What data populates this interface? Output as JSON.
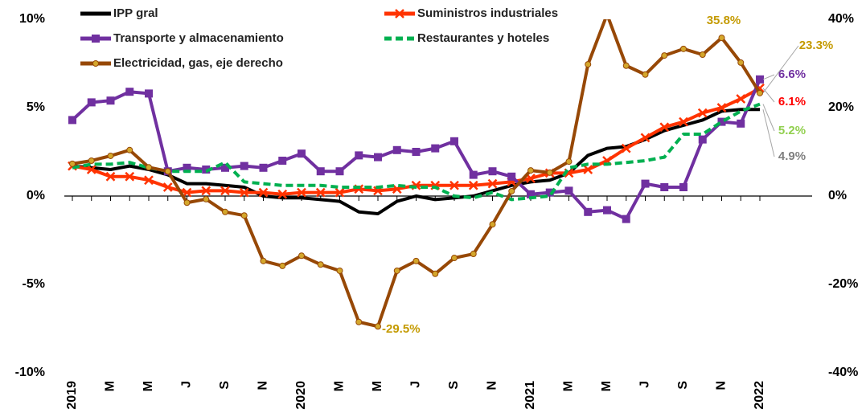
{
  "chart_data": {
    "type": "line",
    "categories": [
      "2019",
      null,
      "M",
      null,
      "M",
      null,
      "J",
      null,
      "S",
      null,
      "N",
      null,
      "2020",
      null,
      "M",
      null,
      "M",
      null,
      "J",
      null,
      "S",
      null,
      "N",
      null,
      "2021",
      null,
      "M",
      null,
      "M",
      null,
      "J",
      null,
      "S",
      null,
      "N",
      null,
      "2022"
    ],
    "ylim": [
      -10,
      10
    ],
    "yticks": [
      {
        "value": 10,
        "label": "10%"
      },
      {
        "value": 5,
        "label": "5%"
      },
      {
        "value": 0,
        "label": "0%"
      },
      {
        "value": -5,
        "label": "-5%"
      },
      {
        "value": -10,
        "label": "-10%"
      }
    ],
    "y2lim": [
      -40,
      40
    ],
    "y2ticks": [
      {
        "value": 40,
        "label": "40%"
      },
      {
        "value": 20,
        "label": "20%"
      },
      {
        "value": 0,
        "label": "0%"
      },
      {
        "value": -20,
        "label": "-20%"
      },
      {
        "value": -40,
        "label": "-40%"
      }
    ],
    "series": [
      {
        "name": "IPP gral",
        "color": "#000000",
        "values": [
          1.7,
          1.6,
          1.5,
          1.7,
          1.5,
          1.2,
          0.7,
          0.7,
          0.6,
          0.5,
          0.0,
          -0.1,
          -0.1,
          -0.2,
          -0.3,
          -0.9,
          -1.0,
          -0.3,
          0.0,
          -0.2,
          -0.1,
          0.0,
          0.3,
          0.6,
          0.8,
          0.9,
          1.3,
          2.3,
          2.7,
          2.8,
          3.2,
          3.7,
          4.0,
          4.3,
          4.8,
          4.9,
          4.9
        ],
        "value_labels": [
          null,
          null,
          null,
          null,
          null,
          null,
          null,
          null,
          null,
          null,
          null,
          null,
          null,
          null,
          null,
          null,
          null,
          null,
          null,
          null,
          null,
          null,
          null,
          null,
          null,
          null,
          null,
          null,
          null,
          null,
          null,
          null,
          null,
          null,
          null,
          null,
          "4.9%"
        ],
        "label_color": "#7f7f7f"
      },
      {
        "name": "Suministros industriales",
        "color": "#ff3300",
        "values": [
          1.7,
          1.5,
          1.1,
          1.1,
          0.9,
          0.5,
          0.2,
          0.3,
          0.3,
          0.2,
          0.2,
          0.1,
          0.2,
          0.2,
          0.2,
          0.4,
          0.3,
          0.4,
          0.6,
          0.6,
          0.6,
          0.6,
          0.7,
          0.8,
          1.0,
          1.3,
          1.3,
          1.5,
          2.0,
          2.7,
          3.3,
          3.9,
          4.2,
          4.7,
          5.0,
          5.5,
          6.1
        ],
        "value_labels": [
          null,
          null,
          null,
          null,
          null,
          null,
          null,
          null,
          null,
          null,
          null,
          null,
          null,
          null,
          null,
          null,
          null,
          null,
          null,
          null,
          null,
          null,
          null,
          null,
          null,
          null,
          null,
          null,
          null,
          null,
          null,
          null,
          null,
          null,
          null,
          null,
          "6.1%"
        ],
        "label_color": "#ff0000"
      },
      {
        "name": "Transporte y almacenamiento",
        "color": "#7030a0",
        "values": [
          4.3,
          5.3,
          5.4,
          5.9,
          5.8,
          1.4,
          1.6,
          1.5,
          1.6,
          1.7,
          1.6,
          2.0,
          2.4,
          1.4,
          1.4,
          2.3,
          2.2,
          2.6,
          2.5,
          2.7,
          3.1,
          1.2,
          1.4,
          1.1,
          0.1,
          0.2,
          0.3,
          -0.9,
          -0.8,
          -1.3,
          0.7,
          0.5,
          0.5,
          3.2,
          4.2,
          4.1,
          6.6
        ],
        "value_labels": [
          null,
          null,
          null,
          null,
          null,
          null,
          null,
          null,
          null,
          null,
          null,
          null,
          null,
          null,
          null,
          null,
          null,
          null,
          null,
          null,
          null,
          null,
          null,
          null,
          null,
          null,
          null,
          null,
          null,
          null,
          null,
          null,
          null,
          null,
          null,
          null,
          "6.6%"
        ],
        "label_color": "#7030a0"
      },
      {
        "name": "Restaurantes y hoteles",
        "color": "#00b050",
        "values": [
          1.6,
          1.8,
          1.8,
          1.9,
          1.6,
          1.4,
          1.4,
          1.4,
          1.9,
          0.8,
          0.7,
          0.6,
          0.6,
          0.6,
          0.5,
          0.5,
          0.5,
          0.6,
          0.5,
          0.5,
          0.0,
          -0.1,
          0.2,
          -0.2,
          -0.1,
          0.0,
          1.6,
          1.8,
          1.8,
          1.9,
          2.0,
          2.2,
          3.5,
          3.5,
          4.2,
          4.8,
          5.2
        ],
        "value_labels": [
          null,
          null,
          null,
          null,
          null,
          null,
          null,
          null,
          null,
          null,
          null,
          null,
          null,
          null,
          null,
          null,
          null,
          null,
          null,
          null,
          null,
          null,
          null,
          null,
          null,
          null,
          null,
          null,
          null,
          null,
          null,
          null,
          null,
          null,
          null,
          null,
          "5.2%"
        ],
        "label_color": "#92d050"
      },
      {
        "name": "Electricidad, gas, eje derecho",
        "color": "#974806",
        "axis": "y2",
        "values": [
          7.3,
          8.0,
          9.1,
          10.4,
          6.5,
          5.6,
          -1.5,
          -0.7,
          -3.6,
          -4.4,
          -14.7,
          -15.8,
          -13.5,
          -15.5,
          -16.9,
          -28.5,
          -29.5,
          -16.9,
          -14.7,
          -17.6,
          -14.0,
          -13.1,
          -6.4,
          1.1,
          5.8,
          5.3,
          7.8,
          29.8,
          41.1,
          29.5,
          27.5,
          31.8,
          33.3,
          32.0,
          35.8,
          30.2,
          23.3
        ],
        "value_labels": [
          null,
          null,
          null,
          null,
          null,
          null,
          null,
          null,
          null,
          null,
          null,
          null,
          null,
          null,
          null,
          null,
          "-29.5%",
          null,
          null,
          null,
          null,
          null,
          null,
          null,
          null,
          null,
          null,
          null,
          null,
          null,
          null,
          null,
          null,
          null,
          "35.8%",
          null,
          "23.3%"
        ],
        "label_color": "#c49a00"
      }
    ]
  }
}
